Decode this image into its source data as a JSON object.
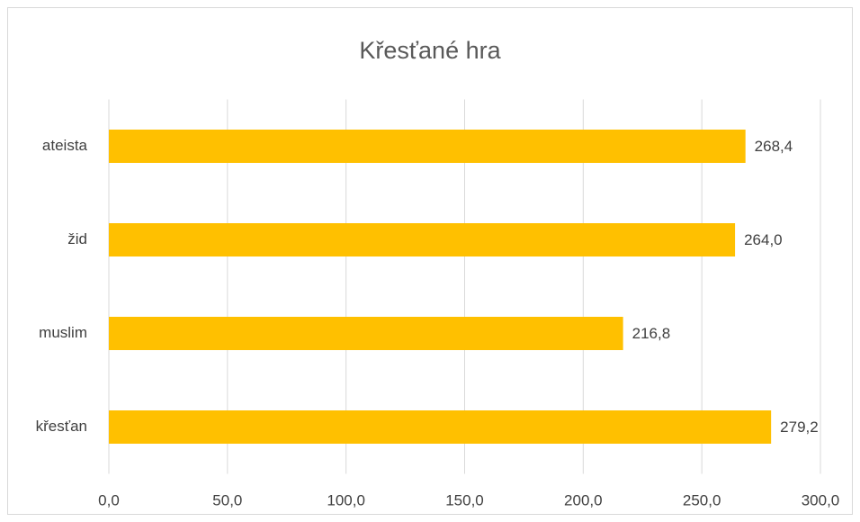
{
  "chart_data": {
    "type": "hbar",
    "title": "Křesťané hra",
    "categories": [
      "ateista",
      "žid",
      "muslim",
      "křesťan"
    ],
    "values": [
      268.4,
      264.0,
      216.8,
      279.2
    ],
    "value_labels": [
      "268,4",
      "264,0",
      "216,8",
      "279,2"
    ],
    "color": "#ffc000",
    "xlim": [
      0,
      300
    ],
    "xticks": [
      {
        "value": 0,
        "label": "0,0"
      },
      {
        "value": 50,
        "label": "50,0"
      },
      {
        "value": 100,
        "label": "100,0"
      },
      {
        "value": 150,
        "label": "150,0"
      },
      {
        "value": 200,
        "label": "200,0"
      },
      {
        "value": 250,
        "label": "250,0"
      },
      {
        "value": 300,
        "label": "300,0"
      }
    ],
    "grid": true
  }
}
